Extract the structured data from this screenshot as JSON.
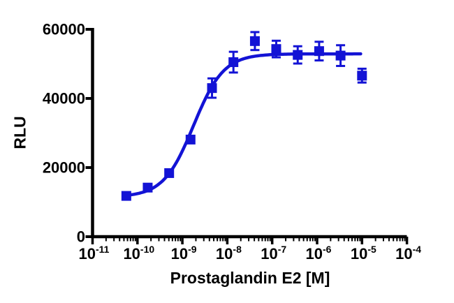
{
  "colors": {
    "curve": "#1313D5",
    "marker": "#1313D5",
    "axis": "#000000",
    "background": "#FFFFFF"
  },
  "chart_data": {
    "type": "scatter",
    "title": "",
    "xlabel": "Prostaglandin E2 [M]",
    "ylabel": "RLU",
    "x_scale": "log10",
    "x_range_log": [
      -11,
      -4
    ],
    "ylim": [
      0,
      60000
    ],
    "grid": false,
    "legend": "none",
    "x_tick_base": "10",
    "x_tick_exponents": [
      -11,
      -10,
      -9,
      -8,
      -7,
      -6,
      -5,
      -4
    ],
    "y_ticks": [
      0,
      20000,
      40000,
      60000
    ],
    "series": [
      {
        "name": "Prostaglandin E2",
        "marker": "square",
        "color": "#1313D5",
        "points": [
          {
            "conc_M": 5.65e-11,
            "rlu": 11800,
            "err": 700
          },
          {
            "conc_M": 1.69e-10,
            "rlu": 14200,
            "err": 700
          },
          {
            "conc_M": 5.08e-10,
            "rlu": 18400,
            "err": 800
          },
          {
            "conc_M": 1.52e-09,
            "rlu": 28100,
            "err": 900
          },
          {
            "conc_M": 4.57e-09,
            "rlu": 43000,
            "err": 2800
          },
          {
            "conc_M": 1.37e-08,
            "rlu": 50500,
            "err": 3000
          },
          {
            "conc_M": 4.12e-08,
            "rlu": 56600,
            "err": 2600
          },
          {
            "conc_M": 1.23e-07,
            "rlu": 54300,
            "err": 2400
          },
          {
            "conc_M": 3.7e-07,
            "rlu": 52600,
            "err": 2500
          },
          {
            "conc_M": 1.11e-06,
            "rlu": 53700,
            "err": 2700
          },
          {
            "conc_M": 3.33e-06,
            "rlu": 52400,
            "err": 3000
          },
          {
            "conc_M": 1e-05,
            "rlu": 46600,
            "err": 2000
          }
        ]
      }
    ],
    "fit_curve": {
      "model": "4PL-sigmoid",
      "bottom": 11500,
      "top": 52900,
      "log_ec50": -8.75,
      "hill": 1.3,
      "x_log_start": -10.3,
      "x_log_end": -5.03
    }
  }
}
